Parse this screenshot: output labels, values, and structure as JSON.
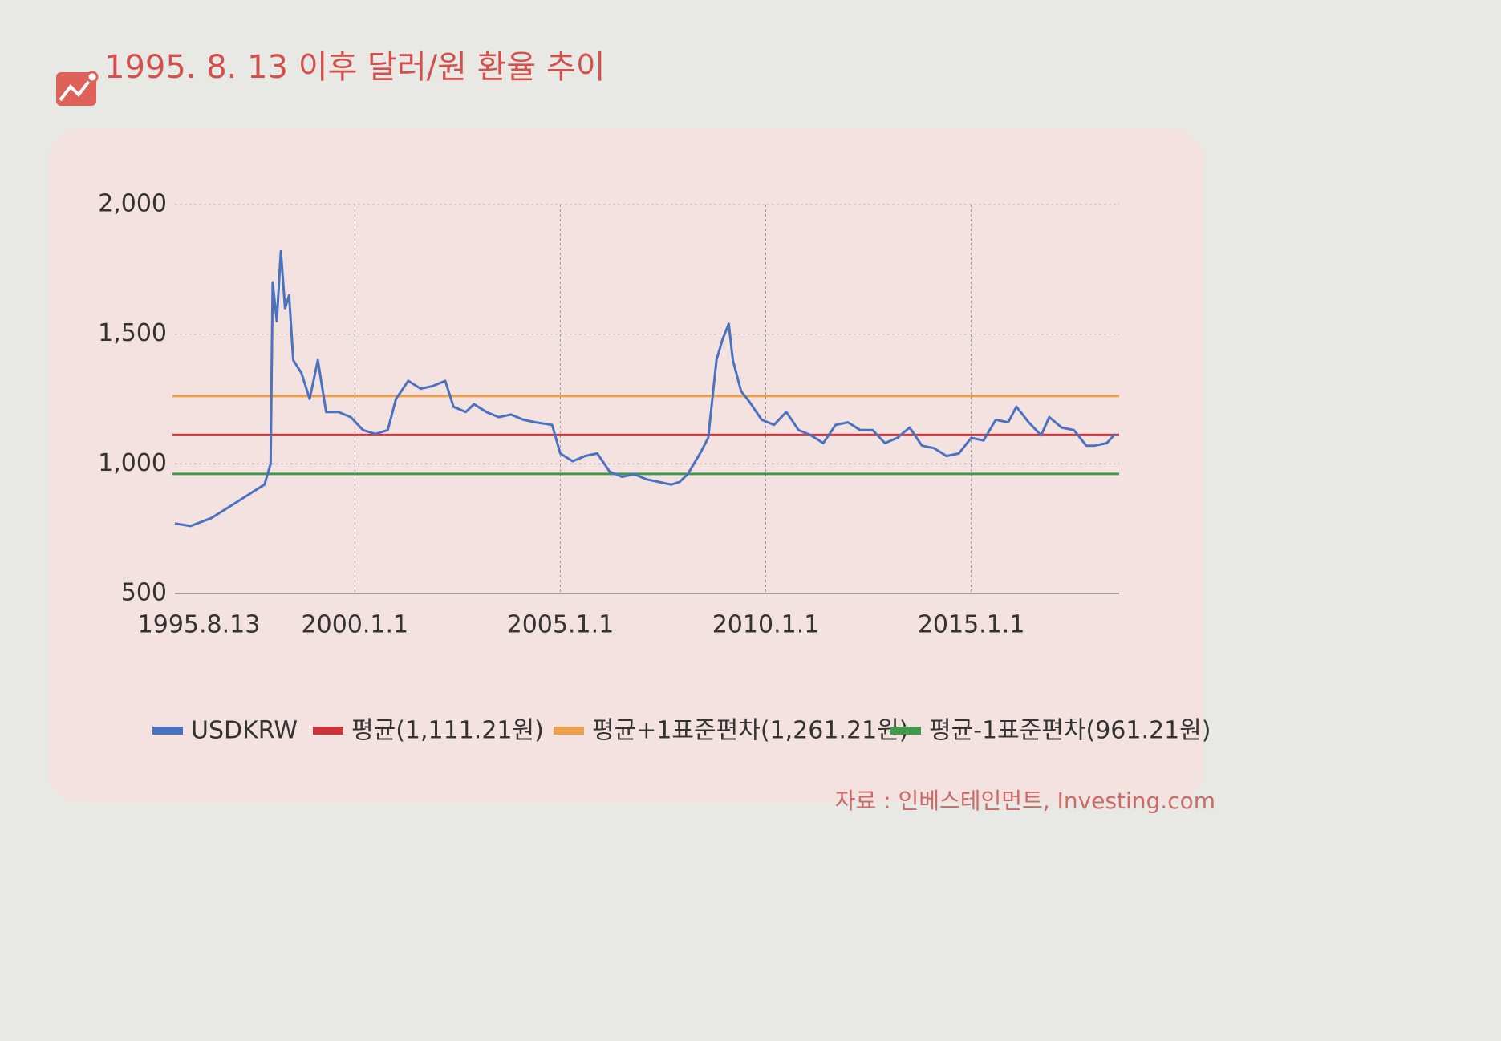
{
  "chart_data": {
    "type": "line",
    "title": "1995. 8. 13 이후 달러/원 환율 추이",
    "source": "자료 : 인베스테인먼트, Investing.com",
    "xlim": [
      1995.62,
      2018.6
    ],
    "xticks": [
      {
        "value": 1995.62,
        "label": "1995.8.13"
      },
      {
        "value": 2000.0,
        "label": "2000.1.1"
      },
      {
        "value": 2005.0,
        "label": "2005.1.1"
      },
      {
        "value": 2010.0,
        "label": "2010.1.1"
      },
      {
        "value": 2015.0,
        "label": "2015.1.1"
      }
    ],
    "ylim": [
      500,
      2000
    ],
    "yticks": [
      500,
      {
        "value": 1000,
        "label": "1,000"
      },
      {
        "value": 1500,
        "label": "1,500"
      },
      {
        "value": 2000,
        "label": "2,000"
      }
    ],
    "grid": true,
    "series": [
      {
        "name": "USDKRW",
        "color": "#4a72c0",
        "x": [
          1995.62,
          1996.0,
          1996.5,
          1997.0,
          1997.5,
          1997.8,
          1997.95,
          1998.0,
          1998.1,
          1998.2,
          1998.3,
          1998.4,
          1998.5,
          1998.7,
          1998.9,
          1999.1,
          1999.3,
          1999.6,
          1999.9,
          2000.2,
          2000.5,
          2000.8,
          2001.0,
          2001.3,
          2001.6,
          2001.9,
          2002.2,
          2002.4,
          2002.7,
          2002.9,
          2003.2,
          2003.5,
          2003.8,
          2004.1,
          2004.4,
          2004.8,
          2005.0,
          2005.3,
          2005.6,
          2005.9,
          2006.2,
          2006.5,
          2006.8,
          2007.1,
          2007.4,
          2007.7,
          2007.9,
          2008.1,
          2008.4,
          2008.6,
          2008.8,
          2008.95,
          2009.1,
          2009.2,
          2009.4,
          2009.6,
          2009.9,
          2010.2,
          2010.5,
          2010.8,
          2011.1,
          2011.4,
          2011.7,
          2012.0,
          2012.3,
          2012.6,
          2012.9,
          2013.2,
          2013.5,
          2013.8,
          2014.1,
          2014.4,
          2014.7,
          2015.0,
          2015.3,
          2015.6,
          2015.9,
          2016.1,
          2016.4,
          2016.7,
          2016.9,
          2017.2,
          2017.5,
          2017.8,
          2018.0,
          2018.3,
          2018.5
        ],
        "values": [
          770,
          760,
          790,
          840,
          890,
          920,
          1000,
          1700,
          1550,
          1820,
          1600,
          1650,
          1400,
          1350,
          1250,
          1400,
          1200,
          1200,
          1180,
          1130,
          1115,
          1130,
          1250,
          1320,
          1290,
          1300,
          1320,
          1220,
          1200,
          1230,
          1200,
          1180,
          1190,
          1170,
          1160,
          1150,
          1040,
          1010,
          1030,
          1040,
          970,
          950,
          960,
          940,
          930,
          920,
          930,
          960,
          1040,
          1100,
          1400,
          1480,
          1540,
          1400,
          1280,
          1240,
          1170,
          1150,
          1200,
          1130,
          1110,
          1080,
          1150,
          1160,
          1130,
          1130,
          1080,
          1100,
          1140,
          1070,
          1060,
          1030,
          1040,
          1100,
          1090,
          1170,
          1160,
          1220,
          1160,
          1110,
          1180,
          1140,
          1130,
          1070,
          1070,
          1080,
          1115
        ]
      }
    ],
    "reference_lines": [
      {
        "name": "평균(1,111.21원)",
        "value": 1111.21,
        "color": "#c9353b"
      },
      {
        "name": "평균+1표준편차(1,261.21원)",
        "value": 1261.21,
        "color": "#eba050"
      },
      {
        "name": "평균-1표준편차(961.21원)",
        "value": 961.21,
        "color": "#3e9a4a"
      }
    ]
  }
}
